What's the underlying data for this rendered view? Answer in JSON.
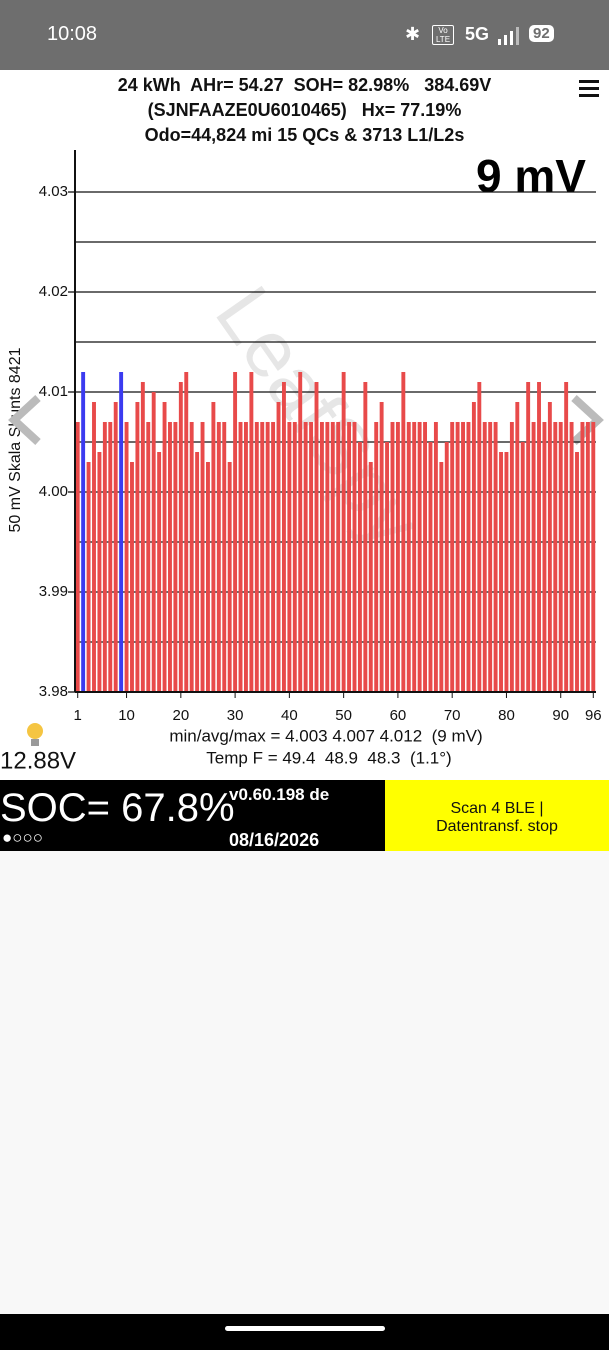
{
  "status_bar": {
    "time": "10:08",
    "volte": "Vo LTE",
    "network": "5G",
    "battery": "92"
  },
  "header": {
    "line1": "24 kWh  AHr= 54.27  SOH= 82.98%   384.69V",
    "line2": "(SJNFAAZE0U6010465)   Hx= 77.19%",
    "line3": "Odo=44,824 mi 15 QCs & 3713 L1/L2s"
  },
  "chart_data": {
    "type": "bar",
    "watermark": "LeafSpy",
    "corner_label": "9 mV",
    "ylabel": "50 mV Skala Shunts 8421",
    "x": [
      1,
      2,
      3,
      4,
      5,
      6,
      7,
      8,
      9,
      10,
      11,
      12,
      13,
      14,
      15,
      16,
      17,
      18,
      19,
      20,
      21,
      22,
      23,
      24,
      25,
      26,
      27,
      28,
      29,
      30,
      31,
      32,
      33,
      34,
      35,
      36,
      37,
      38,
      39,
      40,
      41,
      42,
      43,
      44,
      45,
      46,
      47,
      48,
      49,
      50,
      51,
      52,
      53,
      54,
      55,
      56,
      57,
      58,
      59,
      60,
      61,
      62,
      63,
      64,
      65,
      66,
      67,
      68,
      69,
      70,
      71,
      72,
      73,
      74,
      75,
      76,
      77,
      78,
      79,
      80,
      81,
      82,
      83,
      84,
      85,
      86,
      87,
      88,
      89,
      90,
      91,
      92,
      93,
      94,
      95,
      96
    ],
    "values": [
      4.007,
      4.012,
      4.003,
      4.009,
      4.004,
      4.007,
      4.007,
      4.009,
      4.012,
      4.007,
      4.003,
      4.009,
      4.011,
      4.007,
      4.01,
      4.004,
      4.009,
      4.007,
      4.007,
      4.011,
      4.012,
      4.007,
      4.004,
      4.007,
      4.003,
      4.009,
      4.007,
      4.007,
      4.003,
      4.012,
      4.007,
      4.007,
      4.012,
      4.007,
      4.007,
      4.007,
      4.007,
      4.009,
      4.011,
      4.007,
      4.007,
      4.012,
      4.007,
      4.007,
      4.011,
      4.007,
      4.007,
      4.007,
      4.007,
      4.012,
      4.007,
      4.007,
      4.005,
      4.011,
      4.003,
      4.007,
      4.009,
      4.005,
      4.007,
      4.007,
      4.012,
      4.007,
      4.007,
      4.007,
      4.007,
      4.005,
      4.007,
      4.003,
      4.005,
      4.007,
      4.007,
      4.007,
      4.007,
      4.009,
      4.011,
      4.007,
      4.007,
      4.007,
      4.004,
      4.004,
      4.007,
      4.009,
      4.005,
      4.011,
      4.007,
      4.011,
      4.007,
      4.009,
      4.007,
      4.007,
      4.011,
      4.007,
      4.004,
      4.007,
      4.007,
      4.007
    ],
    "colors": [
      "#e84a4a",
      "#3b3bf0",
      "#e84a4a",
      "#e84a4a",
      "#e84a4a",
      "#e84a4a",
      "#e84a4a",
      "#e84a4a",
      "#3b3bf0",
      "#e84a4a",
      "#e84a4a",
      "#e84a4a",
      "#e84a4a",
      "#e84a4a",
      "#e84a4a",
      "#e84a4a",
      "#e84a4a",
      "#e84a4a",
      "#e84a4a",
      "#e84a4a",
      "#e84a4a",
      "#e84a4a",
      "#e84a4a",
      "#e84a4a",
      "#e84a4a",
      "#e84a4a",
      "#e84a4a",
      "#e84a4a",
      "#e84a4a",
      "#e84a4a",
      "#e84a4a",
      "#e84a4a",
      "#e84a4a",
      "#e84a4a",
      "#e84a4a",
      "#e84a4a",
      "#e84a4a",
      "#e84a4a",
      "#e84a4a",
      "#e84a4a",
      "#e84a4a",
      "#e84a4a",
      "#e84a4a",
      "#e84a4a",
      "#e84a4a",
      "#e84a4a",
      "#e84a4a",
      "#e84a4a",
      "#e84a4a",
      "#e84a4a",
      "#e84a4a",
      "#e84a4a",
      "#e84a4a",
      "#e84a4a",
      "#e84a4a",
      "#e84a4a",
      "#e84a4a",
      "#e84a4a",
      "#e84a4a",
      "#e84a4a",
      "#e84a4a",
      "#e84a4a",
      "#e84a4a",
      "#e84a4a",
      "#e84a4a",
      "#e84a4a",
      "#e84a4a",
      "#e84a4a",
      "#e84a4a",
      "#e84a4a",
      "#e84a4a",
      "#e84a4a",
      "#e84a4a",
      "#e84a4a",
      "#e84a4a",
      "#e84a4a",
      "#e84a4a",
      "#e84a4a",
      "#e84a4a",
      "#e84a4a",
      "#e84a4a",
      "#e84a4a",
      "#e84a4a",
      "#e84a4a",
      "#e84a4a",
      "#e84a4a",
      "#e84a4a",
      "#e84a4a",
      "#e84a4a",
      "#e84a4a",
      "#e84a4a",
      "#e84a4a",
      "#e84a4a",
      "#e84a4a",
      "#e84a4a",
      "#e84a4a"
    ],
    "xlim": [
      0.5,
      96.5
    ],
    "xticks": [
      1,
      10,
      20,
      30,
      40,
      50,
      60,
      70,
      80,
      90,
      96
    ],
    "ylim": [
      3.98,
      4.0342
    ],
    "yticks": [
      3.98,
      3.99,
      {
        "value": 4,
        "label": "4.00"
      },
      4.01,
      4.02,
      4.03
    ],
    "minor_yticks": [
      3.985,
      3.995,
      4.005,
      4.015,
      4.025
    ],
    "grid": true,
    "stats": "min/avg/max = 4.003 4.007 4.012  (9 mV)",
    "temp": "Temp F = 49.4  48.9  48.3  (1.1°)"
  },
  "aux_voltage": "12.88V",
  "footer": {
    "soc": "SOC= 67.8%",
    "version": "v0.60.198 de",
    "date": "08/16/2026",
    "dots": "●○○○",
    "button": [
      "Scan 4 BLE |",
      "Datentransf. stop"
    ]
  }
}
